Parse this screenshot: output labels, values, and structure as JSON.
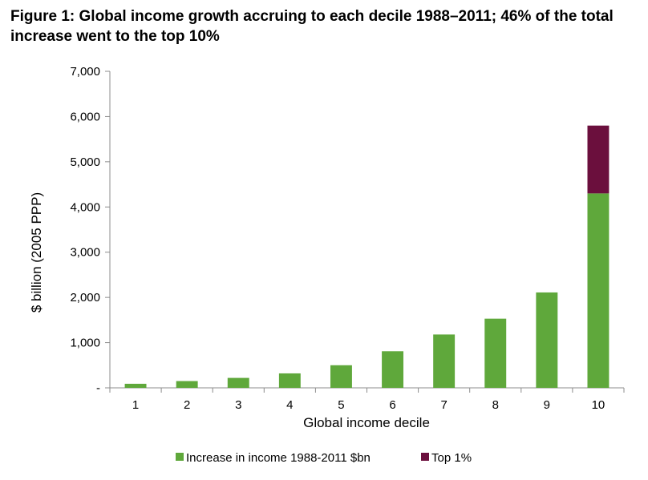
{
  "chart_data": {
    "type": "bar",
    "stacked": true,
    "title": "Figure 1: Global income growth accruing to each decile 1988–2011; 46% of the total increase went to the top 10%",
    "xlabel": "Global income decile",
    "ylabel": "$ billion (2005 PPP)",
    "categories": [
      "1",
      "2",
      "3",
      "4",
      "5",
      "6",
      "7",
      "8",
      "9",
      "10"
    ],
    "ylim": [
      0,
      7000
    ],
    "yticks": [
      0,
      1000,
      2000,
      3000,
      4000,
      5000,
      6000,
      7000
    ],
    "ytick_labels": [
      "-",
      "1,000",
      "2,000",
      "3,000",
      "4,000",
      "5,000",
      "6,000",
      "7,000"
    ],
    "grid": false,
    "legend_position": "bottom",
    "series": [
      {
        "name": "Increase in income 1988-2011 $bn",
        "color": "#5fa83b",
        "values": [
          90,
          150,
          220,
          320,
          500,
          810,
          1180,
          1530,
          2110,
          4300
        ]
      },
      {
        "name": "Top 1%",
        "color": "#6b0f3d",
        "values": [
          0,
          0,
          0,
          0,
          0,
          0,
          0,
          0,
          0,
          1500
        ]
      }
    ]
  }
}
